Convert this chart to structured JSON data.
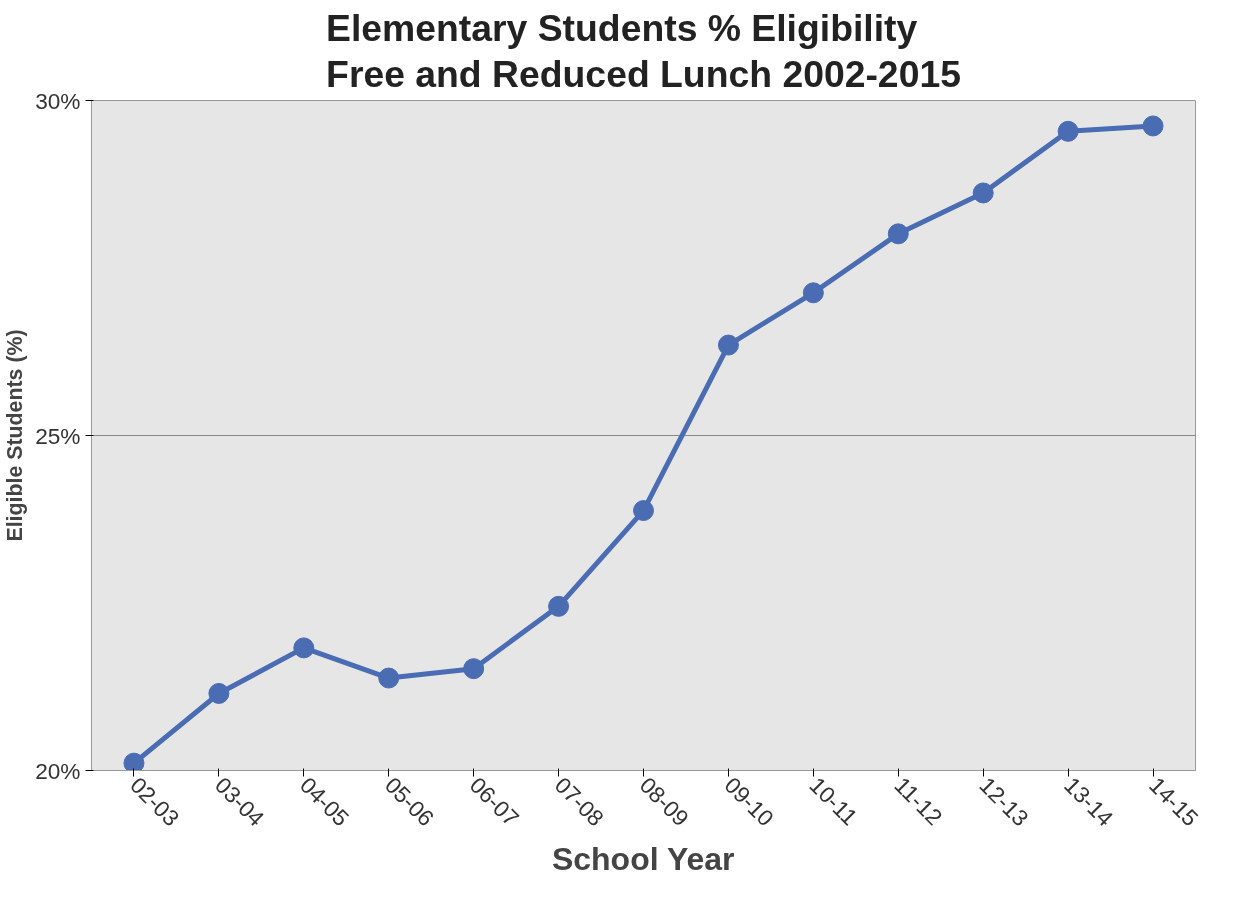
{
  "chart_data": {
    "type": "line",
    "title": "Elementary Students % Eligibility\nFree and Reduced Lunch 2002-2015",
    "xlabel": "School Year",
    "ylabel": "Eligible Students (%)",
    "categories": [
      "02-03",
      "03-04",
      "04-05",
      "05-06",
      "06-07",
      "07-08",
      "08-09",
      "09-10",
      "10-11",
      "11-12",
      "12-13",
      "13-14",
      "14-15"
    ],
    "series": [
      {
        "color": "#4a6cb3",
        "values": [
          20.11,
          21.15,
          21.83,
          21.38,
          21.52,
          22.45,
          23.88,
          26.35,
          27.13,
          28.01,
          28.62,
          29.54,
          29.62
        ]
      }
    ],
    "ylim": [
      20,
      30
    ],
    "yticks": [
      {
        "value": 20,
        "label": "20%"
      },
      {
        "value": 25,
        "label": "25%"
      },
      {
        "value": 30,
        "label": "30%"
      }
    ],
    "grid": "y",
    "marker": "circle",
    "line_style": "solid"
  }
}
